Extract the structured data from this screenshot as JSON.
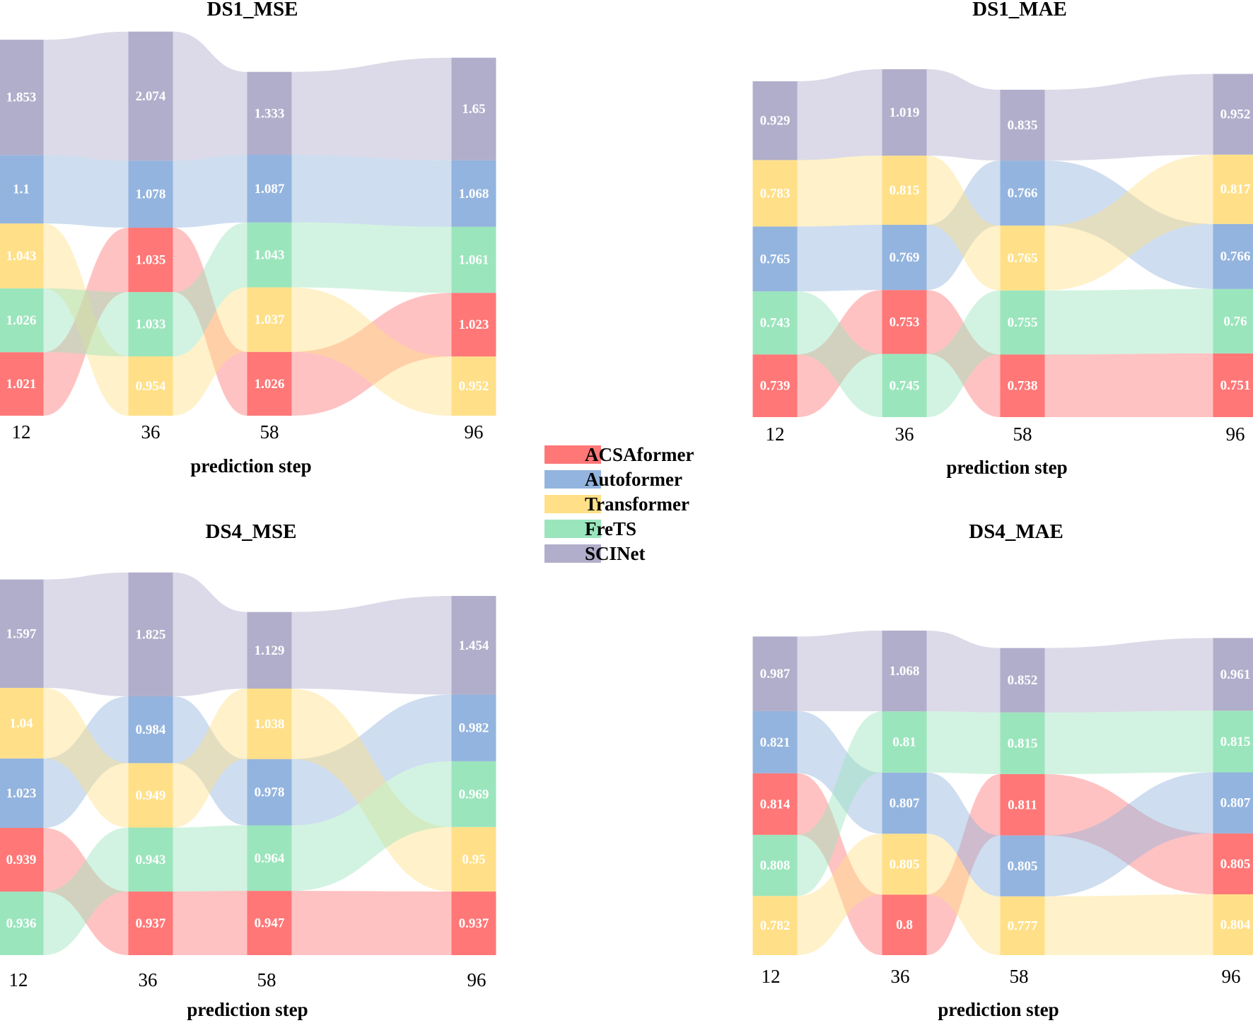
{
  "legend": {
    "entries": [
      {
        "name": "ACSAformer",
        "color": "#ff7777"
      },
      {
        "name": "Autoformer",
        "color": "#93b4de"
      },
      {
        "name": "Transformer",
        "color": "#ffe088"
      },
      {
        "name": "FreTS",
        "color": "#9be5bd"
      },
      {
        "name": "SCINet",
        "color": "#b1aecb"
      }
    ]
  },
  "chart_data": [
    {
      "type": "bump-stacked",
      "title": "DS1_MSE",
      "xlabel": "prediction step",
      "ylabel": "",
      "categories": [
        "12",
        "36",
        "58",
        "96"
      ],
      "stack_order": [
        [
          "ACSAformer",
          "FreTS",
          "Transformer",
          "Autoformer",
          "SCINet"
        ],
        [
          "Transformer",
          "FreTS",
          "ACSAformer",
          "Autoformer",
          "SCINet"
        ],
        [
          "ACSAformer",
          "Transformer",
          "FreTS",
          "Autoformer",
          "SCINet"
        ],
        [
          "Transformer",
          "ACSAformer",
          "FreTS",
          "Autoformer",
          "SCINet"
        ]
      ],
      "series": [
        {
          "name": "ACSAformer",
          "values": [
            1.021,
            1.035,
            1.026,
            1.023
          ]
        },
        {
          "name": "Autoformer",
          "values": [
            1.1,
            1.078,
            1.087,
            1.068
          ]
        },
        {
          "name": "Transformer",
          "values": [
            1.043,
            0.954,
            1.037,
            0.952
          ]
        },
        {
          "name": "FreTS",
          "values": [
            1.026,
            1.033,
            1.043,
            1.061
          ]
        },
        {
          "name": "SCINet",
          "values": [
            1.853,
            2.074,
            1.333,
            1.65
          ]
        }
      ]
    },
    {
      "type": "bump-stacked",
      "title": "DS1_MAE",
      "xlabel": "prediction step",
      "ylabel": "",
      "categories": [
        "12",
        "36",
        "58",
        "96"
      ],
      "stack_order": [
        [
          "ACSAformer",
          "FreTS",
          "Autoformer",
          "Transformer",
          "SCINet"
        ],
        [
          "FreTS",
          "ACSAformer",
          "Autoformer",
          "Transformer",
          "SCINet"
        ],
        [
          "ACSAformer",
          "FreTS",
          "Transformer",
          "Autoformer",
          "SCINet"
        ],
        [
          "ACSAformer",
          "FreTS",
          "Autoformer",
          "Transformer",
          "SCINet"
        ]
      ],
      "series": [
        {
          "name": "ACSAformer",
          "values": [
            0.739,
            0.753,
            0.738,
            0.751
          ]
        },
        {
          "name": "Autoformer",
          "values": [
            0.765,
            0.769,
            0.766,
            0.766
          ]
        },
        {
          "name": "Transformer",
          "values": [
            0.783,
            0.815,
            0.765,
            0.817
          ]
        },
        {
          "name": "FreTS",
          "values": [
            0.743,
            0.745,
            0.755,
            0.76
          ]
        },
        {
          "name": "SCINet",
          "values": [
            0.929,
            1.019,
            0.835,
            0.952
          ]
        }
      ]
    },
    {
      "type": "bump-stacked",
      "title": "DS4_MSE",
      "xlabel": "prediction step",
      "ylabel": "",
      "categories": [
        "12",
        "36",
        "58",
        "96"
      ],
      "stack_order": [
        [
          "FreTS",
          "ACSAformer",
          "Autoformer",
          "Transformer",
          "SCINet"
        ],
        [
          "ACSAformer",
          "FreTS",
          "Transformer",
          "Autoformer",
          "SCINet"
        ],
        [
          "ACSAformer",
          "FreTS",
          "Autoformer",
          "Transformer",
          "SCINet"
        ],
        [
          "ACSAformer",
          "Transformer",
          "FreTS",
          "Autoformer",
          "SCINet"
        ]
      ],
      "series": [
        {
          "name": "ACSAformer",
          "values": [
            0.939,
            0.937,
            0.947,
            0.937
          ]
        },
        {
          "name": "Autoformer",
          "values": [
            1.023,
            0.984,
            0.978,
            0.982
          ]
        },
        {
          "name": "Transformer",
          "values": [
            1.04,
            0.949,
            1.038,
            0.95
          ]
        },
        {
          "name": "FreTS",
          "values": [
            0.936,
            0.943,
            0.964,
            0.969
          ]
        },
        {
          "name": "SCINet",
          "values": [
            1.597,
            1.825,
            1.129,
            1.454
          ]
        }
      ]
    },
    {
      "type": "bump-stacked",
      "title": "DS4_MAE",
      "xlabel": "prediction step",
      "ylabel": "",
      "categories": [
        "12",
        "36",
        "58",
        "96"
      ],
      "stack_order": [
        [
          "Transformer",
          "FreTS",
          "ACSAformer",
          "Autoformer",
          "SCINet"
        ],
        [
          "ACSAformer",
          "Transformer",
          "Autoformer",
          "FreTS",
          "SCINet"
        ],
        [
          "Transformer",
          "Autoformer",
          "ACSAformer",
          "FreTS",
          "SCINet"
        ],
        [
          "Transformer",
          "ACSAformer",
          "Autoformer",
          "FreTS",
          "SCINet"
        ]
      ],
      "series": [
        {
          "name": "ACSAformer",
          "values": [
            0.814,
            0.8,
            0.811,
            0.805
          ]
        },
        {
          "name": "Autoformer",
          "values": [
            0.821,
            0.807,
            0.805,
            0.807
          ]
        },
        {
          "name": "Transformer",
          "values": [
            0.782,
            0.805,
            0.777,
            0.804
          ]
        },
        {
          "name": "FreTS",
          "values": [
            0.808,
            0.81,
            0.815,
            0.815
          ]
        },
        {
          "name": "SCINet",
          "values": [
            0.987,
            1.068,
            0.852,
            0.961
          ]
        }
      ]
    }
  ]
}
